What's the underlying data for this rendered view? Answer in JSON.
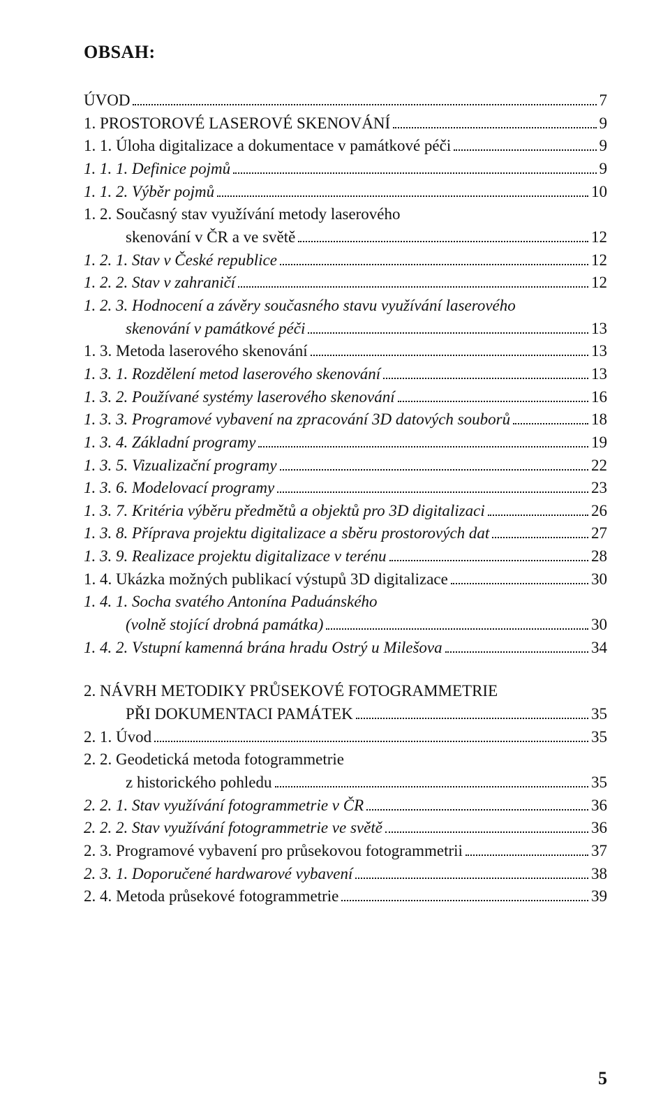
{
  "header": "OBSAH:",
  "footer_page": "5",
  "blocks": [
    {
      "entries": [
        {
          "type": "line",
          "label": "ÚVOD",
          "page": "7",
          "italic": false,
          "bold": false,
          "indent": 0
        },
        {
          "type": "line",
          "label": "1. PROSTOROVÉ LASEROVÉ SKENOVÁNÍ",
          "page": "9",
          "italic": false,
          "bold": false,
          "indent": 0
        },
        {
          "type": "line",
          "label": "1. 1. Úloha digitalizace a dokumentace v památkové péči",
          "page": "9",
          "italic": false,
          "bold": false,
          "indent": 0
        },
        {
          "type": "line",
          "label": "1. 1. 1. Definice pojmů",
          "page": "9",
          "italic": true,
          "bold": false,
          "indent": 0
        },
        {
          "type": "line",
          "label": "1. 1. 2. Výběr pojmů",
          "page": "10",
          "italic": true,
          "bold": false,
          "indent": 0
        },
        {
          "type": "multi",
          "first": "1. 2. Současný stav využívání metody laserového",
          "last": "skenování v ČR a ve světě",
          "page": "12",
          "italic": false,
          "bold": false,
          "indent": 0,
          "last_indent": 1
        },
        {
          "type": "line",
          "label": "1. 2. 1. Stav v České republice",
          "page": "12",
          "italic": true,
          "bold": false,
          "indent": 0
        },
        {
          "type": "line",
          "label": "1. 2. 2. Stav v zahraničí",
          "page": "12",
          "italic": true,
          "bold": false,
          "indent": 0
        },
        {
          "type": "multi",
          "first": "1. 2. 3. Hodnocení a závěry současného stavu využívání laserového",
          "last": "skenování v památkové péči",
          "page": "13",
          "italic": true,
          "bold": false,
          "indent": 0,
          "last_indent": 1
        },
        {
          "type": "line",
          "label": "1. 3. Metoda laserového skenování",
          "page": "13",
          "italic": false,
          "bold": false,
          "indent": 0
        },
        {
          "type": "line",
          "label": "1. 3. 1. Rozdělení metod laserového skenování",
          "page": "13",
          "italic": true,
          "bold": false,
          "indent": 0
        },
        {
          "type": "line",
          "label": "1. 3. 2. Používané systémy laserového skenování",
          "page": "16",
          "italic": true,
          "bold": false,
          "indent": 0
        },
        {
          "type": "line",
          "label": "1. 3. 3. Programové vybavení na zpracování 3D datových souborů",
          "page": "18",
          "italic": true,
          "bold": false,
          "indent": 0
        },
        {
          "type": "line",
          "label": "1. 3. 4. Základní programy",
          "page": "19",
          "italic": true,
          "bold": false,
          "indent": 0
        },
        {
          "type": "line",
          "label": "1. 3. 5. Vizualizační programy",
          "page": "22",
          "italic": true,
          "bold": false,
          "indent": 0
        },
        {
          "type": "line",
          "label": "1. 3. 6. Modelovací programy",
          "page": "23",
          "italic": true,
          "bold": false,
          "indent": 0
        },
        {
          "type": "line",
          "label": "1. 3. 7. Kritéria výběru předmětů a objektů pro 3D digitalizaci",
          "page": "26",
          "italic": true,
          "bold": false,
          "indent": 0
        },
        {
          "type": "line",
          "label": "1. 3. 8. Příprava projektu digitalizace a sběru prostorových dat",
          "page": "27",
          "italic": true,
          "bold": false,
          "indent": 0
        },
        {
          "type": "line",
          "label": "1. 3. 9. Realizace projektu digitalizace v terénu",
          "page": "28",
          "italic": true,
          "bold": false,
          "indent": 0
        },
        {
          "type": "line",
          "label": "1. 4. Ukázka možných publikací výstupů 3D digitalizace",
          "page": "30",
          "italic": false,
          "bold": false,
          "indent": 0
        },
        {
          "type": "multi",
          "first": "1. 4. 1. Socha svatého Antonína Paduánského",
          "last": "(volně stojící drobná památka)",
          "page": "30",
          "italic": true,
          "bold": false,
          "indent": 0,
          "last_indent": 1
        },
        {
          "type": "line",
          "label": "1. 4. 2. Vstupní kamenná brána hradu Ostrý u Milešova",
          "page": "34",
          "italic": true,
          "bold": false,
          "indent": 0
        }
      ]
    },
    {
      "entries": [
        {
          "type": "multi",
          "first": "2. NÁVRH METODIKY PRŮSEKOVÉ FOTOGRAMMETRIE",
          "last": "PŘI DOKUMENTACI PAMÁTEK",
          "page": "35",
          "italic": false,
          "bold": false,
          "indent": 0,
          "last_indent": 1
        },
        {
          "type": "line",
          "label": "2. 1. Úvod",
          "page": "35",
          "italic": false,
          "bold": false,
          "indent": 0
        },
        {
          "type": "multi",
          "first": "2. 2. Geodetická metoda fotogrammetrie",
          "last": "z historického pohledu",
          "page": "35",
          "italic": false,
          "bold": false,
          "indent": 0,
          "last_indent": 1
        },
        {
          "type": "line",
          "label": "2. 2. 1. Stav využívání fotogrammetrie v ČR",
          "page": "36",
          "italic": true,
          "bold": false,
          "indent": 0
        },
        {
          "type": "line",
          "label": "2. 2. 2. Stav využívání fotogrammetrie ve světě",
          "page": "36",
          "italic": true,
          "bold": false,
          "indent": 0
        },
        {
          "type": "line",
          "label": "2. 3. Programové vybavení pro průsekovou fotogrammetrii",
          "page": "37",
          "italic": false,
          "bold": false,
          "indent": 0
        },
        {
          "type": "line",
          "label": "2. 3. 1. Doporučené hardwarové vybavení",
          "page": "38",
          "italic": true,
          "bold": false,
          "indent": 0
        },
        {
          "type": "line",
          "label": "2. 4. Metoda průsekové fotogrammetrie",
          "page": "39",
          "italic": false,
          "bold": false,
          "indent": 0
        }
      ]
    }
  ]
}
